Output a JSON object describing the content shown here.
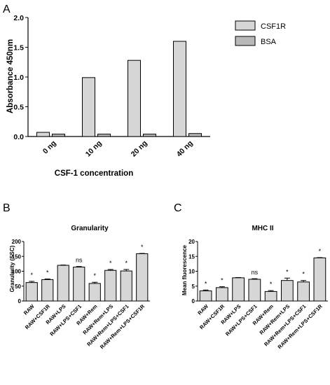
{
  "figure": {
    "panels": [
      "A",
      "B",
      "C"
    ],
    "colors": {
      "bar_fill": "#d6d6d6",
      "bar_fill_bsa": "#b8b8b8",
      "stroke": "#000000"
    }
  },
  "chart_data": [
    {
      "id": "A",
      "type": "bar",
      "title": "",
      "xlabel": "CSF-1 concentration",
      "ylabel": "Absorbance 450nm",
      "ylim": [
        0,
        2.0
      ],
      "yticks": [
        "0.0",
        "0.5",
        "1.0",
        "1.5",
        "2.0"
      ],
      "categories": [
        "0 ng",
        "10 ng",
        "20 ng",
        "40 ng"
      ],
      "series": [
        {
          "name": "CSF1R",
          "values": [
            0.07,
            0.99,
            1.28,
            1.6
          ]
        },
        {
          "name": "BSA",
          "values": [
            0.04,
            0.04,
            0.04,
            0.05
          ]
        }
      ],
      "legend": "top-right"
    },
    {
      "id": "B",
      "type": "bar",
      "title": "Granularity",
      "xlabel": "",
      "ylabel": "Granularity (SSC)",
      "ylim": [
        0,
        200
      ],
      "yticks": [
        "0",
        "50",
        "100",
        "150",
        "200"
      ],
      "categories": [
        "RAW",
        "RAW+CSF1R",
        "RAW+LPS",
        "RAW+LPS+CSF1",
        "RAW+Rem",
        "RAW+Rem+LPS",
        "RAW+Rem+LPS+CSF1",
        "RAW+Rem+LPS+CSF1R"
      ],
      "values": [
        62,
        72,
        120,
        114,
        59,
        103,
        101,
        159
      ],
      "errors": [
        4,
        2,
        1,
        2,
        4,
        3,
        5,
        1
      ],
      "annotations": [
        "*",
        "*",
        "",
        "ns",
        "*",
        "*",
        "*",
        "*"
      ]
    },
    {
      "id": "C",
      "type": "bar",
      "title": "MHC II",
      "xlabel": "",
      "ylabel": "Mean fluorescence",
      "ylim": [
        0,
        20
      ],
      "yticks": [
        "0",
        "5",
        "10",
        "15",
        "20"
      ],
      "categories": [
        "RAW",
        "RAW+CSF1R",
        "RAW+LPS",
        "RAW+LPS+CSF1",
        "RAW+Rem",
        "RAW+Rem+LPS",
        "RAW+Rem+LPS+CSF1",
        "RAW+Rem+LPS+CSF1R"
      ],
      "values": [
        3.4,
        4.5,
        7.8,
        7.3,
        3.2,
        6.9,
        6.4,
        14.5
      ],
      "errors": [
        0.3,
        0.3,
        0.1,
        0.2,
        0.3,
        0.8,
        0.5,
        0.1
      ],
      "annotations": [
        "*",
        "*",
        "",
        "ns",
        "*",
        "*",
        "*",
        "*"
      ]
    }
  ]
}
